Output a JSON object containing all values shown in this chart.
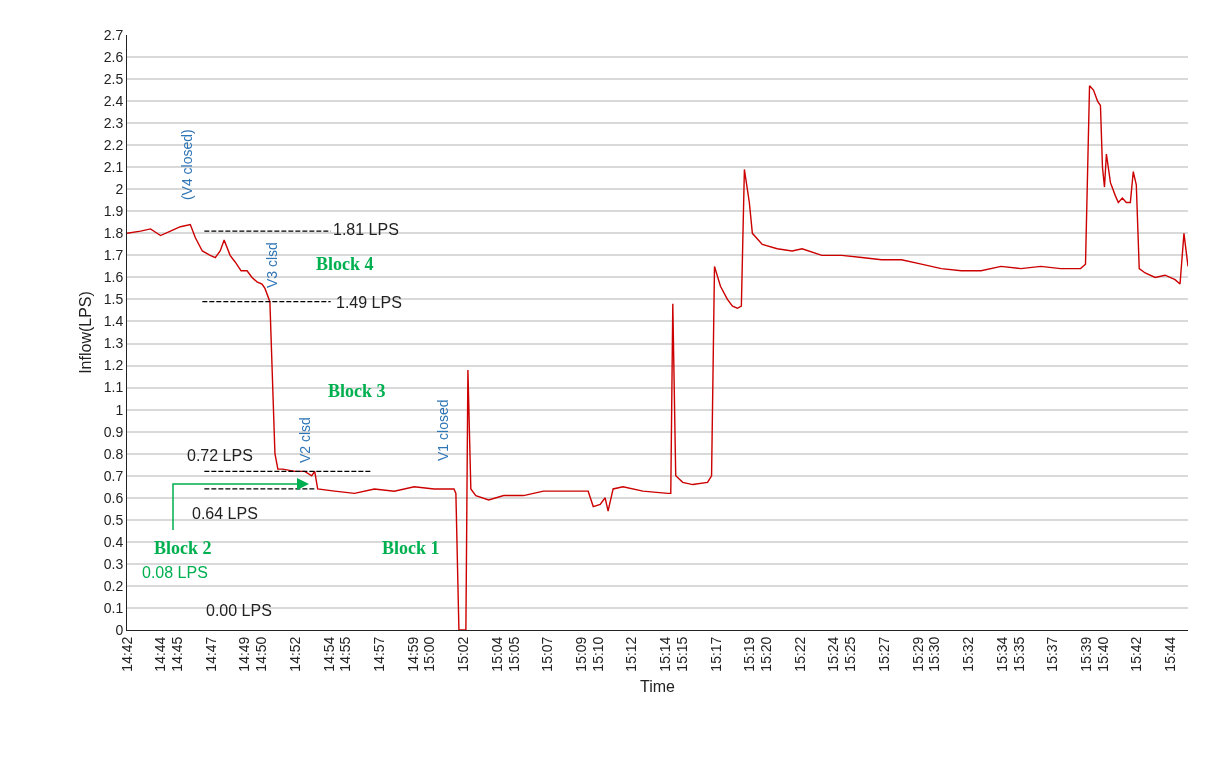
{
  "chart_data": {
    "type": "line",
    "xlabel": "Time",
    "ylabel": "Inflow(LPS)",
    "grid": "y",
    "xlim": [
      14.7,
      15.7507
    ],
    "ylim": [
      0,
      2.7
    ],
    "xticks": [
      {
        "value": 14.7,
        "label": "14:42"
      },
      {
        "value": 14.7333,
        "label": "14:44"
      },
      {
        "value": 14.75,
        "label": "14:45"
      },
      {
        "value": 14.7833,
        "label": "14:47"
      },
      {
        "value": 14.8167,
        "label": "14:49"
      },
      {
        "value": 14.8333,
        "label": "14:50"
      },
      {
        "value": 14.8667,
        "label": "14:52"
      },
      {
        "value": 14.9,
        "label": "14:54"
      },
      {
        "value": 14.9167,
        "label": "14:55"
      },
      {
        "value": 14.95,
        "label": "14:57"
      },
      {
        "value": 14.9833,
        "label": "14:59"
      },
      {
        "value": 15,
        "label": "15:00"
      },
      {
        "value": 15.0333,
        "label": "15:02"
      },
      {
        "value": 15.0667,
        "label": "15:04"
      },
      {
        "value": 15.0833,
        "label": "15:05"
      },
      {
        "value": 15.1167,
        "label": "15:07"
      },
      {
        "value": 15.15,
        "label": "15:09"
      },
      {
        "value": 15.1667,
        "label": "15:10"
      },
      {
        "value": 15.2,
        "label": "15:12"
      },
      {
        "value": 15.2333,
        "label": "15:14"
      },
      {
        "value": 15.25,
        "label": "15:15"
      },
      {
        "value": 15.2833,
        "label": "15:17"
      },
      {
        "value": 15.3167,
        "label": "15:19"
      },
      {
        "value": 15.3333,
        "label": "15:20"
      },
      {
        "value": 15.3667,
        "label": "15:22"
      },
      {
        "value": 15.4,
        "label": "15:24"
      },
      {
        "value": 15.4167,
        "label": "15:25"
      },
      {
        "value": 15.45,
        "label": "15:27"
      },
      {
        "value": 15.4833,
        "label": "15:29"
      },
      {
        "value": 15.5,
        "label": "15:30"
      },
      {
        "value": 15.5333,
        "label": "15:32"
      },
      {
        "value": 15.5667,
        "label": "15:34"
      },
      {
        "value": 15.5833,
        "label": "15:35"
      },
      {
        "value": 15.6167,
        "label": "15:37"
      },
      {
        "value": 15.65,
        "label": "15:39"
      },
      {
        "value": 15.6667,
        "label": "15:40"
      },
      {
        "value": 15.7,
        "label": "15:42"
      },
      {
        "value": 15.7333,
        "label": "15:44"
      }
    ],
    "yticks": [
      0,
      0.1,
      0.2,
      0.3,
      0.4,
      0.5,
      0.6,
      0.7,
      0.8,
      0.9,
      1,
      1.1,
      1.2,
      1.3,
      1.4,
      1.5,
      1.6,
      1.7,
      1.8,
      1.9,
      2,
      2.1,
      2.2,
      2.3,
      2.4,
      2.5,
      2.6,
      2.7
    ],
    "series": [
      {
        "color": "#cc0000",
        "x": [
          14.7,
          14.7135,
          14.7233,
          14.7332,
          14.743,
          14.7529,
          14.7627,
          14.7677,
          14.7746,
          14.7824,
          14.7874,
          14.7923,
          14.7962,
          14.8021,
          14.8071,
          14.813,
          14.8189,
          14.8238,
          14.8287,
          14.8337,
          14.8366,
          14.8415,
          14.8465,
          14.8494,
          14.8543,
          14.8662,
          14.876,
          14.8829,
          14.8859,
          14.8888,
          14.9056,
          14.9253,
          14.945,
          14.9647,
          14.9844,
          15.0041,
          15.0238,
          15.0257,
          15.0287,
          15.0326,
          15.0356,
          15.0376,
          15.0405,
          15.0454,
          15.0582,
          15.073,
          15.0927,
          15.1124,
          15.1321,
          15.1567,
          15.1617,
          15.1686,
          15.1735,
          15.1764,
          15.1814,
          15.1912,
          15.2109,
          15.2355,
          15.2385,
          15.2405,
          15.2434,
          15.2503,
          15.2602,
          15.2749,
          15.2789,
          15.2818,
          15.2877,
          15.2946,
          15.2996,
          15.3045,
          15.3084,
          15.3114,
          15.3163,
          15.3193,
          15.3291,
          15.3439,
          15.3587,
          15.3685,
          15.3882,
          15.4079,
          15.4276,
          15.4473,
          15.467,
          15.4867,
          15.5064,
          15.5261,
          15.5458,
          15.5655,
          15.5852,
          15.6049,
          15.6246,
          15.6443,
          15.6492,
          15.6532,
          15.6571,
          15.6611,
          15.664,
          15.666,
          15.668,
          15.6699,
          15.6739,
          15.6788,
          15.6817,
          15.6857,
          15.6896,
          15.6936,
          15.6965,
          15.6995,
          15.7024,
          15.7083,
          15.7182,
          15.728,
          15.7379,
          15.7428,
          15.7467,
          15.7507
        ],
        "values": [
          1.8,
          1.81,
          1.82,
          1.79,
          1.81,
          1.83,
          1.84,
          1.78,
          1.72,
          1.7,
          1.69,
          1.72,
          1.77,
          1.7,
          1.67,
          1.63,
          1.63,
          1.6,
          1.58,
          1.57,
          1.55,
          1.49,
          0.8,
          0.73,
          0.73,
          0.72,
          0.72,
          0.7,
          0.72,
          0.64,
          0.63,
          0.62,
          0.64,
          0.63,
          0.65,
          0.64,
          0.64,
          0.62,
          0,
          0,
          0,
          1.18,
          0.64,
          0.61,
          0.59,
          0.61,
          0.61,
          0.63,
          0.63,
          0.63,
          0.56,
          0.57,
          0.6,
          0.54,
          0.64,
          0.65,
          0.63,
          0.62,
          0.62,
          1.48,
          0.7,
          0.67,
          0.66,
          0.67,
          0.7,
          1.65,
          1.56,
          1.5,
          1.47,
          1.46,
          1.47,
          2.09,
          1.94,
          1.8,
          1.75,
          1.73,
          1.72,
          1.73,
          1.7,
          1.7,
          1.69,
          1.68,
          1.68,
          1.66,
          1.64,
          1.63,
          1.63,
          1.65,
          1.64,
          1.65,
          1.64,
          1.64,
          1.66,
          2.47,
          2.45,
          2.4,
          2.38,
          2.1,
          2.01,
          2.16,
          2.03,
          1.97,
          1.94,
          1.96,
          1.94,
          1.94,
          2.08,
          2.02,
          1.64,
          1.62,
          1.6,
          1.61,
          1.59,
          1.57,
          1.8,
          1.65
        ]
      },
      {
        "color": "#000000",
        "line_style": "dashed",
        "x": [
          14.7766,
          14.9017
        ],
        "values": [
          1.81,
          1.81
        ]
      },
      {
        "color": "#000000",
        "line_style": "dashed",
        "x": [
          14.7746,
          14.9017
        ],
        "values": [
          1.49,
          1.49
        ]
      },
      {
        "color": "#000000",
        "line_style": "dashed",
        "x": [
          14.7766,
          14.941
        ],
        "values": [
          0.72,
          0.72
        ]
      },
      {
        "color": "#000000",
        "line_style": "dashed",
        "x": [
          14.7766,
          14.8869
        ],
        "values": [
          0.64,
          0.64
        ]
      }
    ],
    "annotations": [
      "(V4 closed)",
      "V3 clsd",
      "V2 clsd",
      "V1 closed",
      "Block 4",
      "Block 3",
      "Block 2",
      "Block 1",
      "0.08 LPS",
      "0.00 LPS",
      "1.81 LPS",
      "1.49 LPS",
      "0.72 LPS",
      "0.64 LPS"
    ]
  }
}
